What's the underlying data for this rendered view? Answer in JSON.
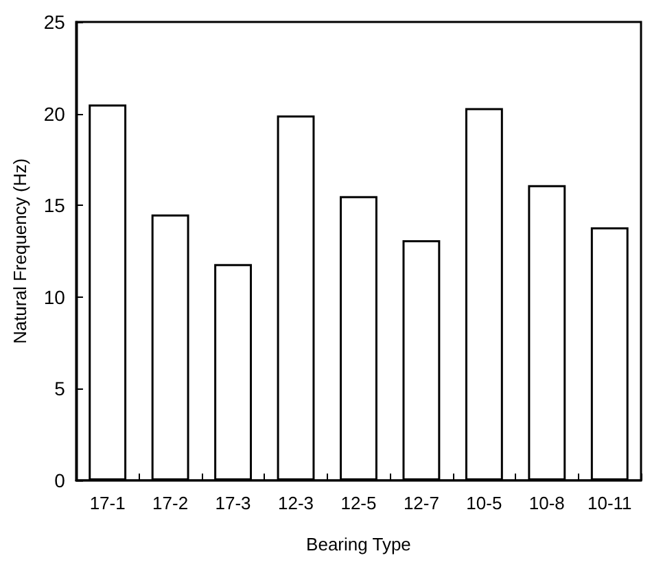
{
  "chart_data": {
    "type": "bar",
    "xlabel": "Bearing Type",
    "ylabel": "Natural Frequency (Hz)",
    "categories": [
      "17-1",
      "17-2",
      "17-3",
      "12-3",
      "12-5",
      "12-7",
      "10-5",
      "10-8",
      "10-11"
    ],
    "values": [
      20.5,
      14.5,
      11.8,
      19.9,
      15.5,
      13.1,
      20.3,
      16.1,
      13.8
    ],
    "color": "#ffffff",
    "ylim": [
      0,
      25
    ],
    "yticks": [
      0,
      5,
      10,
      15,
      20,
      25
    ],
    "grid": false
  }
}
